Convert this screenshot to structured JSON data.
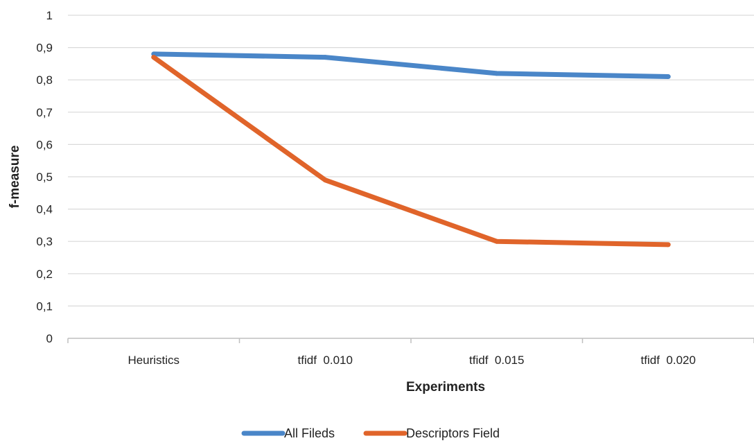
{
  "chart_data": {
    "type": "line",
    "categories": [
      "Heuristics",
      "tfidf  0.010",
      "tfidf  0.015",
      "tfidf  0.020"
    ],
    "series": [
      {
        "name": "All Fileds",
        "values": [
          0.88,
          0.87,
          0.82,
          0.81
        ],
        "color": "#4a86c8"
      },
      {
        "name": "Descriptors Field",
        "values": [
          0.87,
          0.49,
          0.3,
          0.29
        ],
        "color": "#e0642a"
      }
    ],
    "title": "",
    "xlabel": "Experiments",
    "ylabel": "f-measure",
    "ylim": [
      0,
      1
    ],
    "yticks": [
      "0",
      "0,1",
      "0,2",
      "0,3",
      "0,4",
      "0,5",
      "0,6",
      "0,7",
      "0,8",
      "0,9",
      "1"
    ],
    "grid": true,
    "legend_position": "bottom"
  }
}
